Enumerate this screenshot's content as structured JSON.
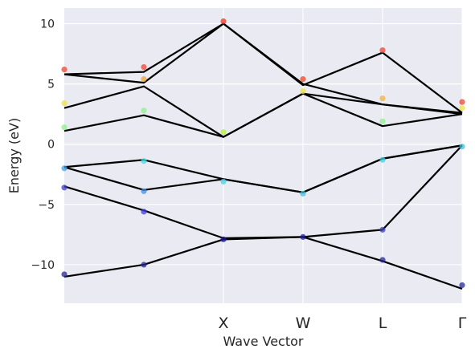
{
  "chart_data": {
    "type": "line",
    "xlabel": "Wave Vector",
    "ylabel": "Energy (eV)",
    "x_positions": [
      0,
      1,
      2,
      3,
      4,
      5
    ],
    "x_tick_labels": [
      {
        "x": 2,
        "label": "X"
      },
      {
        "x": 3,
        "label": "W"
      },
      {
        "x": 4,
        "label": "L"
      },
      {
        "x": 5,
        "label": "Γ"
      }
    ],
    "xlim": [
      0,
      5
    ],
    "ylim": [
      -13.2,
      11.3
    ],
    "yticks": [
      10,
      5,
      0,
      -5,
      -10
    ],
    "ytick_labels": [
      "10",
      "5",
      "0",
      "−5",
      "−10"
    ],
    "grid": true,
    "background_color": "#eaeaf2",
    "line_color": "#000000",
    "bands": [
      {
        "values": [
          -11.0,
          -10.0,
          -7.9,
          -7.7,
          -9.7,
          -12.0
        ]
      },
      {
        "values": [
          -3.5,
          -5.5,
          -7.8,
          -7.7,
          -7.1,
          -0.1
        ]
      },
      {
        "values": [
          -1.9,
          -3.8,
          -2.9,
          -4.0,
          -1.2,
          -0.1
        ]
      },
      {
        "values": [
          -1.9,
          -1.3,
          -2.9,
          -4.0,
          -1.2,
          -0.1
        ]
      },
      {
        "values": [
          1.1,
          2.4,
          0.6,
          4.2,
          1.5,
          2.5
        ]
      },
      {
        "values": [
          3.0,
          4.8,
          0.6,
          4.2,
          3.3,
          2.5
        ]
      },
      {
        "values": [
          5.8,
          5.1,
          10.0,
          5.0,
          3.3,
          2.6
        ]
      },
      {
        "values": [
          5.8,
          6.0,
          10.0,
          4.9,
          7.6,
          2.6
        ]
      }
    ],
    "points": [
      {
        "x": 0,
        "y": -10.8,
        "color": "#262699"
      },
      {
        "x": 0,
        "y": -3.6,
        "color": "#3f3fbf"
      },
      {
        "x": 0,
        "y": -2.0,
        "color": "#3fa0e6"
      },
      {
        "x": 0,
        "y": 1.4,
        "color": "#8cf08c"
      },
      {
        "x": 0,
        "y": 3.4,
        "color": "#f0e040"
      },
      {
        "x": 0,
        "y": 6.2,
        "color": "#ee4433"
      },
      {
        "x": 1,
        "y": -10.0,
        "color": "#262699"
      },
      {
        "x": 1,
        "y": -5.6,
        "color": "#3f3fdf"
      },
      {
        "x": 1,
        "y": -3.9,
        "color": "#3f8fe6"
      },
      {
        "x": 1,
        "y": -1.4,
        "color": "#40e0e0"
      },
      {
        "x": 1,
        "y": 2.8,
        "color": "#8cf08c"
      },
      {
        "x": 1,
        "y": 5.4,
        "color": "#f0a040"
      },
      {
        "x": 1,
        "y": 6.4,
        "color": "#ee4433"
      },
      {
        "x": 2,
        "y": -7.9,
        "color": "#1a1a99"
      },
      {
        "x": 2,
        "y": -3.1,
        "color": "#40d0e6"
      },
      {
        "x": 2,
        "y": 1.0,
        "color": "#b0f040"
      },
      {
        "x": 2,
        "y": 10.2,
        "color": "#ee3322"
      },
      {
        "x": 3,
        "y": -7.7,
        "color": "#1a1a99"
      },
      {
        "x": 3,
        "y": -4.1,
        "color": "#40c0e0"
      },
      {
        "x": 3,
        "y": 4.4,
        "color": "#e8e040"
      },
      {
        "x": 3,
        "y": 5.4,
        "color": "#ee4422"
      },
      {
        "x": 4,
        "y": -9.6,
        "color": "#262699"
      },
      {
        "x": 4,
        "y": -7.1,
        "color": "#3f3fbf"
      },
      {
        "x": 4,
        "y": -1.3,
        "color": "#40d0e6"
      },
      {
        "x": 4,
        "y": 1.9,
        "color": "#8cf08c"
      },
      {
        "x": 4,
        "y": 3.8,
        "color": "#f0b040"
      },
      {
        "x": 4,
        "y": 7.8,
        "color": "#ee4433"
      },
      {
        "x": 5,
        "y": -11.7,
        "color": "#262699"
      },
      {
        "x": 5,
        "y": -0.2,
        "color": "#40c0e0"
      },
      {
        "x": 5,
        "y": 3.0,
        "color": "#f0e040"
      },
      {
        "x": 5,
        "y": 3.5,
        "color": "#ee4433"
      }
    ]
  }
}
